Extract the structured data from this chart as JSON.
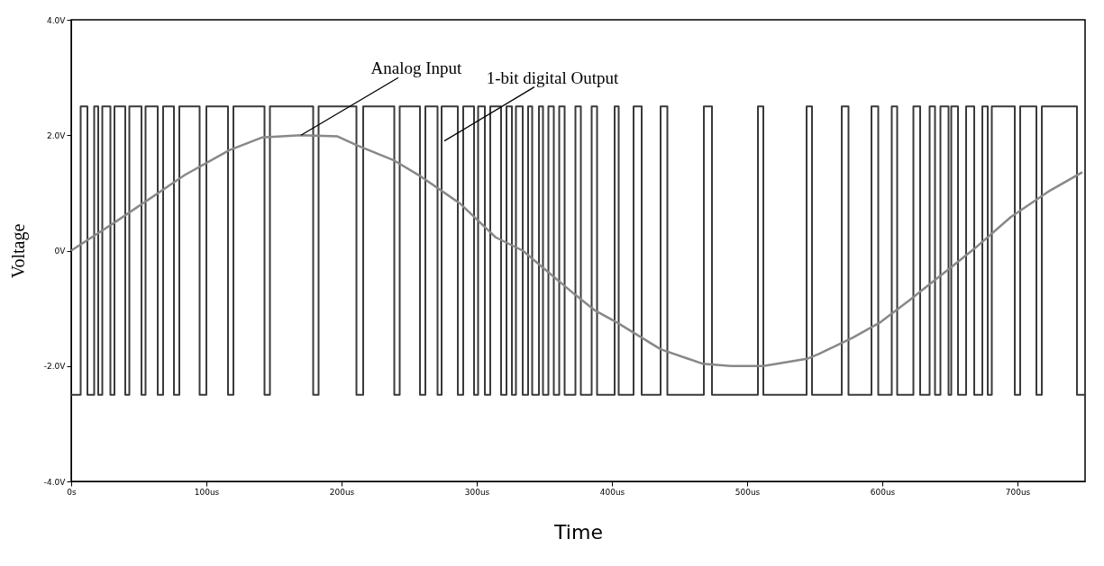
{
  "chart_data": {
    "type": "line",
    "xlabel": "Time",
    "ylabel": "Voltage",
    "xlim": [
      0,
      750
    ],
    "ylim": [
      -4,
      4
    ],
    "xticks": [
      {
        "value": 0,
        "label": "0s"
      },
      {
        "value": 100,
        "label": "100us"
      },
      {
        "value": 200,
        "label": "200us"
      },
      {
        "value": 300,
        "label": "300us"
      },
      {
        "value": 400,
        "label": "400us"
      },
      {
        "value": 500,
        "label": "500us"
      },
      {
        "value": 600,
        "label": "600us"
      },
      {
        "value": 700,
        "label": "700us"
      }
    ],
    "yticks": [
      {
        "value": -4,
        "label": "-4.0V"
      },
      {
        "value": -2,
        "label": "-2.0V"
      },
      {
        "value": 0,
        "label": "0V"
      },
      {
        "value": 2,
        "label": "2.0V"
      },
      {
        "value": 4,
        "label": "4.0V"
      }
    ],
    "grid": false,
    "marker": "none",
    "line_style": "solid",
    "annotations": [
      {
        "text": "Analog Input",
        "x": 170,
        "y": 2.0
      },
      {
        "text": "1-bit digital Output",
        "x": 276,
        "y": 1.9
      }
    ],
    "series": [
      {
        "type": "step",
        "color": "#3a3a3a",
        "x": [
          0,
          7,
          12,
          17,
          20,
          23,
          29,
          32,
          40,
          43,
          52,
          55,
          64,
          68,
          76,
          80,
          95,
          100,
          116,
          120,
          143,
          147,
          179,
          183,
          211,
          216,
          239,
          243,
          258,
          262,
          271,
          274,
          286,
          290,
          298,
          301,
          306,
          310,
          318,
          322,
          326,
          329,
          334,
          338,
          341,
          346,
          349,
          353,
          357,
          361,
          365,
          373,
          377,
          385,
          389,
          402,
          405,
          416,
          422,
          436,
          441,
          468,
          474,
          508,
          512,
          544,
          548,
          570,
          575,
          592,
          597,
          607,
          611,
          623,
          628,
          635,
          639,
          643,
          649,
          651,
          656,
          662,
          668,
          674,
          678,
          681,
          698,
          702,
          714,
          718,
          744,
          750
        ],
        "values": [
          -2.5,
          2.5,
          -2.5,
          2.5,
          -2.5,
          2.5,
          -2.5,
          2.5,
          -2.5,
          2.5,
          -2.5,
          2.5,
          -2.5,
          2.5,
          -2.5,
          2.5,
          -2.5,
          2.5,
          -2.5,
          2.5,
          -2.5,
          2.5,
          -2.5,
          2.5,
          -2.5,
          2.5,
          -2.5,
          2.5,
          -2.5,
          2.5,
          -2.5,
          2.5,
          -2.5,
          2.5,
          -2.5,
          2.5,
          -2.5,
          2.5,
          -2.5,
          2.5,
          -2.5,
          2.5,
          -2.5,
          2.5,
          -2.5,
          2.5,
          -2.5,
          2.5,
          -2.5,
          2.5,
          -2.5,
          2.5,
          -2.5,
          2.5,
          -2.5,
          2.5,
          -2.5,
          2.5,
          -2.5,
          2.5,
          -2.5,
          2.5,
          -2.5,
          2.5,
          -2.5,
          2.5,
          -2.5,
          2.5,
          -2.5,
          2.5,
          -2.5,
          2.5,
          -2.5,
          2.5,
          -2.5,
          2.5,
          -2.5,
          2.5,
          -2.5,
          2.5,
          -2.5,
          2.5,
          -2.5,
          2.5,
          -2.5,
          2.5,
          -2.5,
          2.5,
          -2.5,
          2.5,
          -2.5,
          -2.5
        ]
      },
      {
        "type": "line",
        "color": "#888888",
        "x": [
          0,
          31,
          84,
          117,
          141,
          170,
          197,
          212,
          239,
          259,
          288,
          314,
          334,
          372,
          387,
          404,
          436,
          467,
          488,
          512,
          545,
          553,
          578,
          598,
          620,
          653,
          668,
          695,
          724,
          748
        ],
        "values": [
          0,
          0.47,
          1.31,
          1.74,
          1.96,
          2.0,
          1.98,
          1.82,
          1.56,
          1.28,
          0.81,
          0.23,
          0,
          -0.75,
          -1.03,
          -1.25,
          -1.71,
          -1.96,
          -2.0,
          -2.0,
          -1.87,
          -1.79,
          -1.51,
          -1.25,
          -0.86,
          -0.25,
          0.03,
          0.58,
          1.04,
          1.36
        ]
      }
    ]
  }
}
